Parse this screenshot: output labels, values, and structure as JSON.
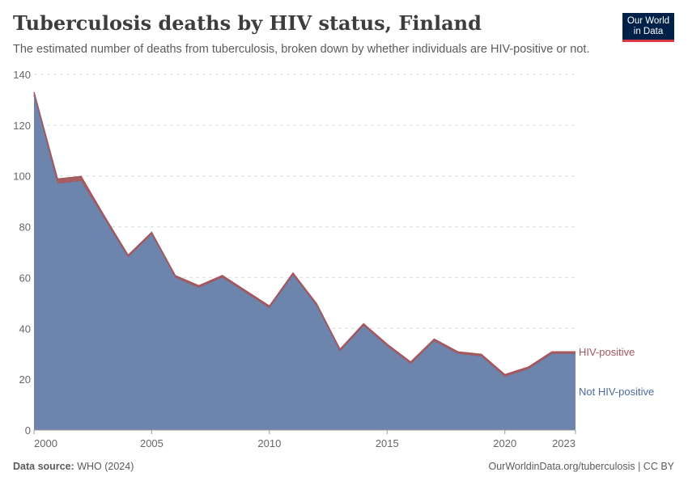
{
  "header": {
    "title": "Tuberculosis deaths by HIV status, Finland",
    "subtitle": "The estimated number of deaths from tuberculosis, broken down by whether individuals are HIV-positive or not."
  },
  "logo": {
    "line1": "Our World",
    "line2": "in Data",
    "bg_color": "#002147",
    "accent_color": "#dc3545"
  },
  "footer": {
    "source_label": "Data source:",
    "source_value": "WHO (2024)",
    "link": "OurWorldinData.org/tuberculosis | CC BY"
  },
  "chart_data": {
    "type": "area",
    "stacked": true,
    "x": [
      2000,
      2001,
      2002,
      2003,
      2004,
      2005,
      2006,
      2007,
      2008,
      2009,
      2010,
      2011,
      2012,
      2013,
      2014,
      2015,
      2016,
      2017,
      2018,
      2019,
      2020,
      2021,
      2022,
      2023
    ],
    "series": [
      {
        "name": "Not HIV-positive",
        "color": "#6d84ac",
        "values": [
          132,
          97,
          98,
          83,
          68,
          77,
          60,
          56,
          60,
          54,
          48,
          61,
          49,
          31,
          41,
          33,
          26,
          35,
          30,
          29,
          21,
          24,
          30,
          30
        ]
      },
      {
        "name": "HIV-positive",
        "color": "#a2555b",
        "values": [
          1,
          1.8,
          1.8,
          1,
          0.8,
          0.8,
          0.8,
          0.8,
          0.8,
          0.8,
          0.8,
          0.8,
          0.8,
          0.8,
          0.8,
          0.8,
          0.8,
          0.8,
          0.8,
          0.8,
          0.8,
          0.8,
          0.8,
          0.8
        ]
      }
    ],
    "xlim": [
      2000,
      2023
    ],
    "ylim": [
      0,
      140
    ],
    "yticks": [
      0,
      20,
      40,
      60,
      80,
      100,
      120,
      140
    ],
    "xticks": [
      2000,
      2005,
      2010,
      2015,
      2020,
      2023
    ],
    "grid": true,
    "legend": "right, inline labels"
  }
}
